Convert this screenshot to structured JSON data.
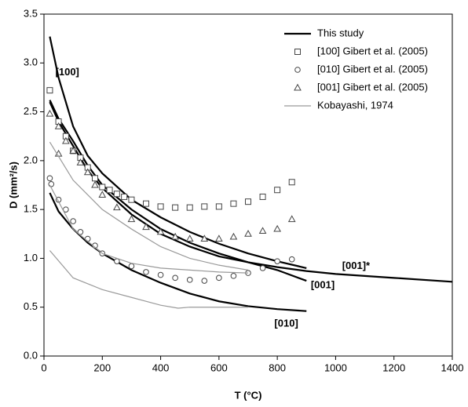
{
  "chart_data": {
    "type": "line",
    "x_label": "T (°C)",
    "y_label": "D (mm²/s)",
    "xlim": [
      0,
      1400
    ],
    "ylim": [
      0,
      3.5
    ],
    "xticks": [
      0,
      200,
      400,
      600,
      800,
      1000,
      1200,
      1400
    ],
    "yticks": [
      {
        "value": 0,
        "label": "0.0"
      },
      0.5,
      {
        "value": 1,
        "label": "1.0"
      },
      1.5,
      {
        "value": 2,
        "label": "2.0"
      },
      2.5,
      {
        "value": 3,
        "label": "3.0"
      },
      3.5
    ],
    "legend": "upper right",
    "series": [
      {
        "name": "This study",
        "kind": "line",
        "color": "#000000",
        "width": 2.2,
        "lines": [
          {
            "label": "[100]",
            "x": [
              20,
              50,
              100,
              150,
              200,
              300,
              400,
              500,
              600,
              700,
              800,
              900
            ],
            "values": [
              3.27,
              2.85,
              2.35,
              2.05,
              1.87,
              1.6,
              1.42,
              1.27,
              1.15,
              1.05,
              0.97,
              0.9
            ]
          },
          {
            "label": "[001]*",
            "x": [
              20,
              50,
              100,
              150,
              200,
              300,
              400,
              500,
              600,
              700,
              800,
              900,
              1000,
              1200,
              1400
            ],
            "values": [
              2.6,
              2.4,
              2.15,
              1.9,
              1.72,
              1.45,
              1.25,
              1.12,
              1.02,
              0.96,
              0.91,
              0.87,
              0.84,
              0.8,
              0.76
            ]
          },
          {
            "label": "[001]",
            "x": [
              20,
              50,
              100,
              150,
              200,
              300,
              400,
              500,
              600,
              700,
              800,
              900
            ],
            "values": [
              2.62,
              2.43,
              2.2,
              1.95,
              1.75,
              1.5,
              1.3,
              1.16,
              1.05,
              0.96,
              0.88,
              0.77
            ]
          },
          {
            "label": "[010]",
            "x": [
              20,
              50,
              100,
              150,
              200,
              300,
              400,
              500,
              600,
              700,
              800,
              900
            ],
            "values": [
              1.67,
              1.48,
              1.3,
              1.16,
              1.05,
              0.88,
              0.75,
              0.64,
              0.56,
              0.51,
              0.48,
              0.46
            ]
          }
        ]
      },
      {
        "name": "[100] Gibert et al. (2005)",
        "kind": "scatter",
        "marker": "square",
        "color": "#444444",
        "x": [
          20,
          50,
          75,
          100,
          125,
          150,
          175,
          200,
          225,
          250,
          275,
          300,
          350,
          400,
          450,
          500,
          550,
          600,
          650,
          700,
          750,
          800,
          850
        ],
        "values": [
          2.72,
          2.4,
          2.25,
          2.1,
          2.03,
          1.93,
          1.82,
          1.73,
          1.7,
          1.66,
          1.63,
          1.6,
          1.56,
          1.53,
          1.52,
          1.52,
          1.53,
          1.53,
          1.56,
          1.58,
          1.63,
          1.7,
          1.78
        ]
      },
      {
        "name": "[010] Gibert et al. (2005)",
        "kind": "scatter",
        "marker": "circle",
        "color": "#444444",
        "x": [
          20,
          25,
          50,
          75,
          100,
          125,
          150,
          175,
          200,
          250,
          300,
          350,
          400,
          450,
          500,
          550,
          600,
          650,
          700,
          750,
          800,
          850
        ],
        "values": [
          1.82,
          1.76,
          1.6,
          1.5,
          1.38,
          1.27,
          1.2,
          1.13,
          1.05,
          0.97,
          0.92,
          0.86,
          0.83,
          0.8,
          0.78,
          0.77,
          0.8,
          0.82,
          0.85,
          0.9,
          0.97,
          0.99
        ]
      },
      {
        "name": "[001] Gibert et al. (2005)",
        "kind": "scatter",
        "marker": "triangle",
        "color": "#444444",
        "x": [
          20,
          50,
          50,
          75,
          100,
          125,
          150,
          175,
          200,
          250,
          300,
          350,
          400,
          450,
          500,
          550,
          600,
          650,
          700,
          750,
          800,
          850
        ],
        "values": [
          2.48,
          2.35,
          2.07,
          2.2,
          2.1,
          1.98,
          1.88,
          1.75,
          1.65,
          1.52,
          1.4,
          1.32,
          1.27,
          1.22,
          1.2,
          1.2,
          1.2,
          1.22,
          1.25,
          1.28,
          1.3,
          1.4
        ]
      },
      {
        "name": "Kobayashi, 1974",
        "kind": "line",
        "color": "#999999",
        "width": 1.2,
        "lines": [
          {
            "x": [
              20,
              100,
              200,
              300,
              400,
              500,
              600,
              700
            ],
            "values": [
              2.19,
              1.8,
              1.5,
              1.3,
              1.12,
              1.0,
              0.93,
              0.88
            ]
          },
          {
            "x": [
              20,
              100,
              200,
              300,
              400,
              500,
              600,
              700
            ],
            "values": [
              1.75,
              1.3,
              1.05,
              0.95,
              0.9,
              0.88,
              0.86,
              0.85
            ]
          },
          {
            "x": [
              20,
              100,
              200,
              300,
              400,
              460,
              500,
              600,
              700
            ],
            "values": [
              1.08,
              0.8,
              0.68,
              0.6,
              0.52,
              0.49,
              0.5,
              0.5,
              0.5
            ]
          }
        ]
      }
    ]
  }
}
